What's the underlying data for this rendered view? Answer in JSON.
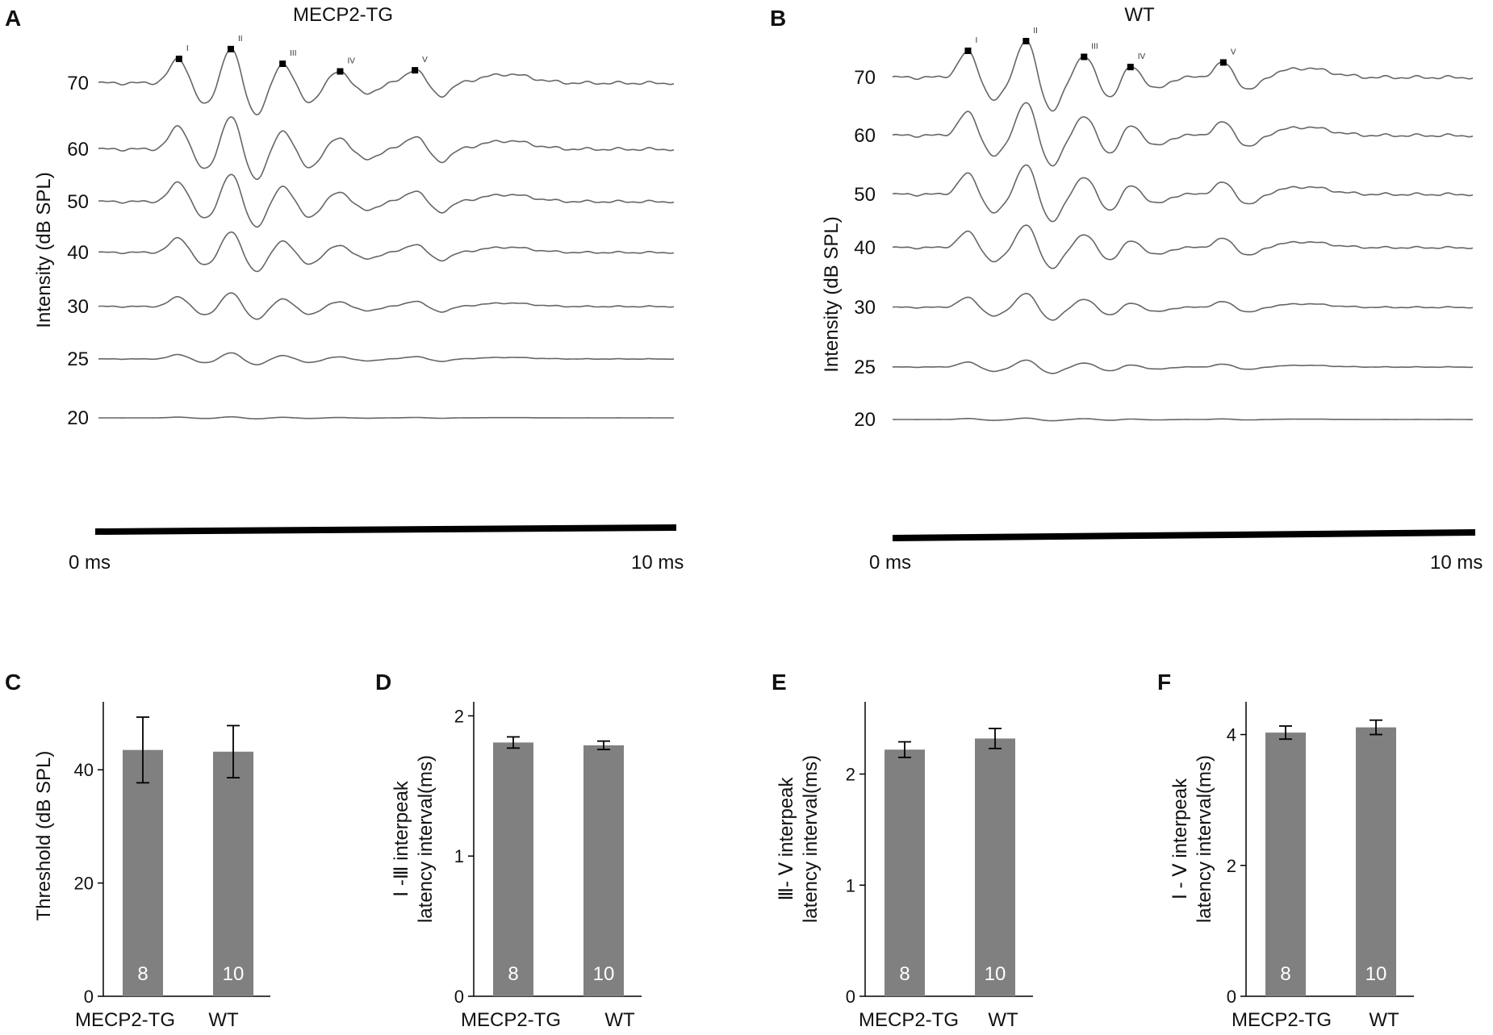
{
  "colors": {
    "trace": "#666666",
    "bar": "#808080",
    "axis": "#000000",
    "marker": "#000000",
    "bar_count_text": "#ffffff"
  },
  "abr_axis_label": "Intensity  (dB SPL)",
  "chart_data": [
    {
      "panel": "A",
      "type": "line",
      "title": "MECP2-TG",
      "ylabel": "Intensity  (dB SPL)",
      "x_start_label": "0 ms",
      "x_end_label": "10 ms",
      "x_range_ms": [
        0,
        10
      ],
      "peaks": [
        {
          "label": "I",
          "latency_ms": 1.4
        },
        {
          "label": "II",
          "latency_ms": 2.3
        },
        {
          "label": "III",
          "latency_ms": 3.2
        },
        {
          "label": "IV",
          "latency_ms": 4.2
        },
        {
          "label": "V",
          "latency_ms": 5.5
        }
      ],
      "traces": [
        {
          "level": "70",
          "gain": 1.0
        },
        {
          "level": "60",
          "gain": 0.95
        },
        {
          "level": "50",
          "gain": 0.8
        },
        {
          "level": "40",
          "gain": 0.6
        },
        {
          "level": "30",
          "gain": 0.4
        },
        {
          "level": "25",
          "gain": 0.18
        },
        {
          "level": "20",
          "gain": 0.03
        }
      ]
    },
    {
      "panel": "B",
      "type": "line",
      "title": "WT",
      "ylabel": "Intensity  (dB SPL)",
      "x_start_label": "0 ms",
      "x_end_label": "10 ms",
      "x_range_ms": [
        0,
        10
      ],
      "peaks": [
        {
          "label": "I",
          "latency_ms": 1.3
        },
        {
          "label": "II",
          "latency_ms": 2.3
        },
        {
          "label": "III",
          "latency_ms": 3.3
        },
        {
          "label": "IV",
          "latency_ms": 4.1
        },
        {
          "label": "V",
          "latency_ms": 5.7
        }
      ],
      "traces": [
        {
          "level": "70",
          "gain": 1.05
        },
        {
          "level": "60",
          "gain": 0.95
        },
        {
          "level": "50",
          "gain": 0.85
        },
        {
          "level": "40",
          "gain": 0.65
        },
        {
          "level": "30",
          "gain": 0.4
        },
        {
          "level": "25",
          "gain": 0.2
        },
        {
          "level": "20",
          "gain": 0.04
        }
      ]
    },
    {
      "panel": "C",
      "type": "bar",
      "categories": [
        "MECP2-TG",
        "WT"
      ],
      "values": [
        43.5,
        43.2
      ],
      "errors": [
        5.8,
        4.6
      ],
      "n": [
        "8",
        "10"
      ],
      "ylabel": "Threshold (dB SPL)",
      "ylim": [
        0,
        52
      ],
      "yticks": [
        0,
        20,
        40
      ],
      "tick_labels": [
        "0",
        "20",
        "40"
      ]
    },
    {
      "panel": "D",
      "type": "bar",
      "categories": [
        "MECP2-TG",
        "WT"
      ],
      "values": [
        1.81,
        1.79
      ],
      "errors": [
        0.04,
        0.03
      ],
      "n": [
        "8",
        "10"
      ],
      "ylabel_lines": [
        "Ⅰ -Ⅲ interpeak",
        "latency interval(ms)"
      ],
      "ylim": [
        0,
        2.1
      ],
      "yticks": [
        0,
        1,
        2
      ],
      "tick_labels": [
        "0",
        "1",
        "2"
      ]
    },
    {
      "panel": "E",
      "type": "bar",
      "categories": [
        "MECP2-TG",
        "WT"
      ],
      "values": [
        2.22,
        2.32
      ],
      "errors": [
        0.07,
        0.09
      ],
      "n": [
        "8",
        "10"
      ],
      "ylabel_lines": [
        "Ⅲ- Ⅴ interpeak",
        "latency interval(ms)"
      ],
      "ylim": [
        0,
        2.65
      ],
      "yticks": [
        0,
        1,
        2
      ],
      "tick_labels": [
        "0",
        "1",
        "2"
      ]
    },
    {
      "panel": "F",
      "type": "bar",
      "categories": [
        "MECP2-TG",
        "WT"
      ],
      "values": [
        4.03,
        4.11
      ],
      "errors": [
        0.1,
        0.11
      ],
      "n": [
        "8",
        "10"
      ],
      "ylabel_lines": [
        "Ⅰ - Ⅴ interpeak",
        "latency interval(ms)"
      ],
      "ylim": [
        0,
        4.5
      ],
      "yticks": [
        0,
        2,
        4
      ],
      "tick_labels": [
        "0",
        "2",
        "4"
      ]
    }
  ]
}
